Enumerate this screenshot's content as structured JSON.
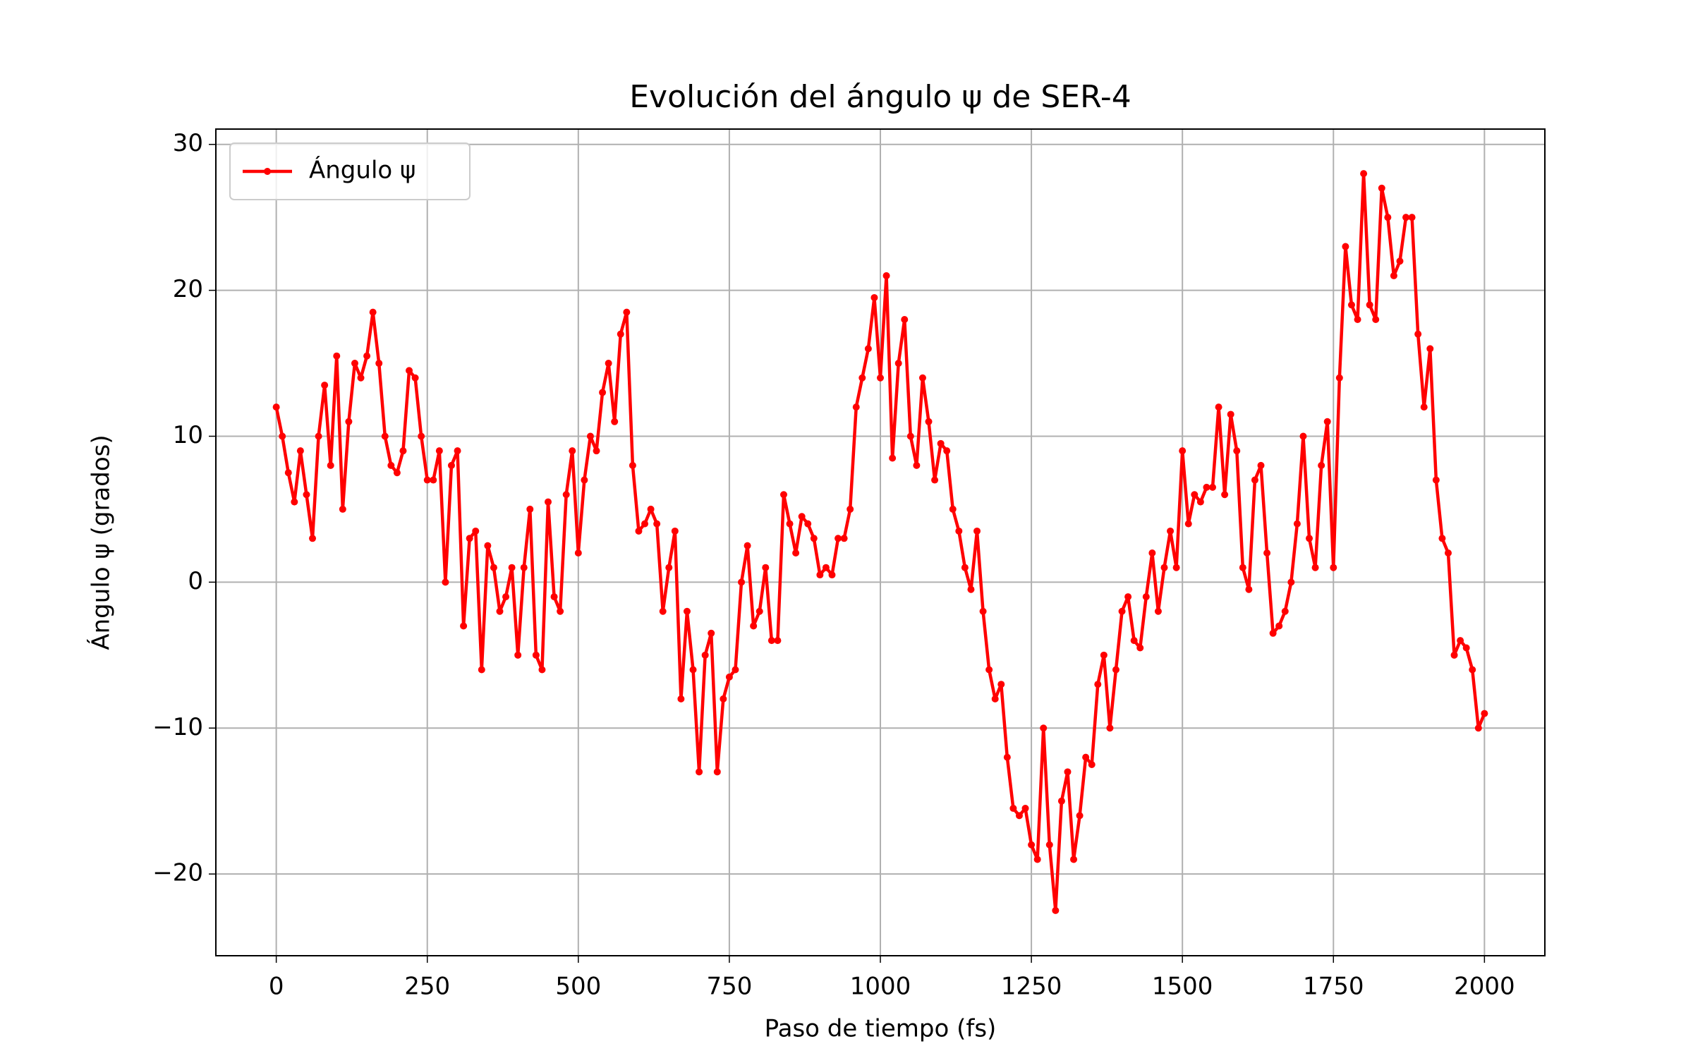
{
  "chart_data": {
    "type": "line",
    "title": "Evolución del ángulo ψ de SER-4",
    "x_label": "Paso de tiempo (fs)",
    "y_label": "Ángulo ψ (grados)",
    "x": [
      0,
      10,
      20,
      30,
      40,
      50,
      60,
      70,
      80,
      90,
      100,
      110,
      120,
      130,
      140,
      150,
      160,
      170,
      180,
      190,
      200,
      210,
      220,
      230,
      240,
      250,
      260,
      270,
      280,
      290,
      300,
      310,
      320,
      330,
      340,
      350,
      360,
      370,
      380,
      390,
      400,
      410,
      420,
      430,
      440,
      450,
      460,
      470,
      480,
      490,
      500,
      510,
      520,
      530,
      540,
      550,
      560,
      570,
      580,
      590,
      600,
      610,
      620,
      630,
      640,
      650,
      660,
      670,
      680,
      690,
      700,
      710,
      720,
      730,
      740,
      750,
      760,
      770,
      780,
      790,
      800,
      810,
      820,
      830,
      840,
      850,
      860,
      870,
      880,
      890,
      900,
      910,
      920,
      930,
      940,
      950,
      960,
      970,
      980,
      990,
      1000,
      1010,
      1020,
      1030,
      1040,
      1050,
      1060,
      1070,
      1080,
      1090,
      1100,
      1110,
      1120,
      1130,
      1140,
      1150,
      1160,
      1170,
      1180,
      1190,
      1200,
      1210,
      1220,
      1230,
      1240,
      1250,
      1260,
      1270,
      1280,
      1290,
      1300,
      1310,
      1320,
      1330,
      1340,
      1350,
      1360,
      1370,
      1380,
      1390,
      1400,
      1410,
      1420,
      1430,
      1440,
      1450,
      1460,
      1470,
      1480,
      1490,
      1500,
      1510,
      1520,
      1530,
      1540,
      1550,
      1560,
      1570,
      1580,
      1590,
      1600,
      1610,
      1620,
      1630,
      1640,
      1650,
      1660,
      1670,
      1680,
      1690,
      1700,
      1710,
      1720,
      1730,
      1740,
      1750,
      1760,
      1770,
      1780,
      1790,
      1800,
      1810,
      1820,
      1830,
      1840,
      1850,
      1860,
      1870,
      1880,
      1890,
      1900,
      1910,
      1920,
      1930,
      1940,
      1950,
      1960,
      1970,
      1980,
      1990,
      2000
    ],
    "series": [
      {
        "name": "Ángulo ψ",
        "color": "#ff0000",
        "values": [
          12,
          10,
          7.5,
          5.5,
          9,
          6,
          3,
          10,
          13.5,
          8,
          15.5,
          5,
          11,
          15,
          14,
          15.5,
          18.5,
          15,
          10,
          8,
          7.5,
          9,
          14.5,
          14,
          10,
          7,
          7,
          9,
          0,
          8,
          9,
          -3,
          3,
          3.5,
          -6,
          2.5,
          1,
          -2,
          -1,
          1,
          -5,
          1,
          5,
          -5,
          -6,
          5.5,
          -1,
          -2,
          6,
          9,
          2,
          7,
          10,
          9,
          13,
          15,
          11,
          17,
          18.5,
          8,
          3.5,
          4,
          5,
          4,
          -2,
          1,
          3.5,
          -8,
          -2,
          -6,
          -13,
          -5,
          -3.5,
          -13,
          -8,
          -6.5,
          -6,
          0,
          2.5,
          -3,
          -2,
          1,
          -4,
          -4,
          6,
          4,
          2,
          4.5,
          4,
          3,
          0.5,
          1,
          0.5,
          3,
          3,
          5,
          12,
          14,
          16,
          19.5,
          14,
          21,
          8.5,
          15,
          18,
          10,
          8,
          14,
          11,
          7,
          9.5,
          9,
          5,
          3.5,
          1,
          -0.5,
          3.5,
          -2,
          -6,
          -8,
          -7,
          -12,
          -15.5,
          -16,
          -15.5,
          -18,
          -19,
          -10,
          -18,
          -22.5,
          -15,
          -13,
          -19,
          -16,
          -12,
          -12.5,
          -7,
          -5,
          -10,
          -6,
          -2,
          -1,
          -4,
          -4.5,
          -1,
          2,
          -2,
          1,
          3.5,
          1,
          9,
          4,
          6,
          5.5,
          6.5,
          6.5,
          12,
          6,
          11.5,
          9,
          1,
          -0.5,
          7,
          8,
          2,
          -3.5,
          -3,
          -2,
          0,
          4,
          10,
          3,
          1,
          8,
          11,
          1,
          14,
          23,
          19,
          18,
          28,
          19,
          18,
          27,
          25,
          21,
          22,
          25,
          25,
          17,
          12,
          16,
          7,
          3,
          2,
          -5,
          -4,
          -4.5,
          -6,
          -10,
          -9
        ]
      }
    ],
    "xlim": [
      -100,
      2100
    ],
    "ylim": [
      -25.6,
      31.05
    ],
    "xticks": [
      0,
      250,
      500,
      750,
      1000,
      1250,
      1500,
      1750,
      2000
    ],
    "yticks": [
      {
        "value": -20,
        "label": "−20"
      },
      {
        "value": -10,
        "label": "−10"
      },
      0,
      10,
      20,
      30
    ],
    "grid": true,
    "legend": "upper left"
  }
}
